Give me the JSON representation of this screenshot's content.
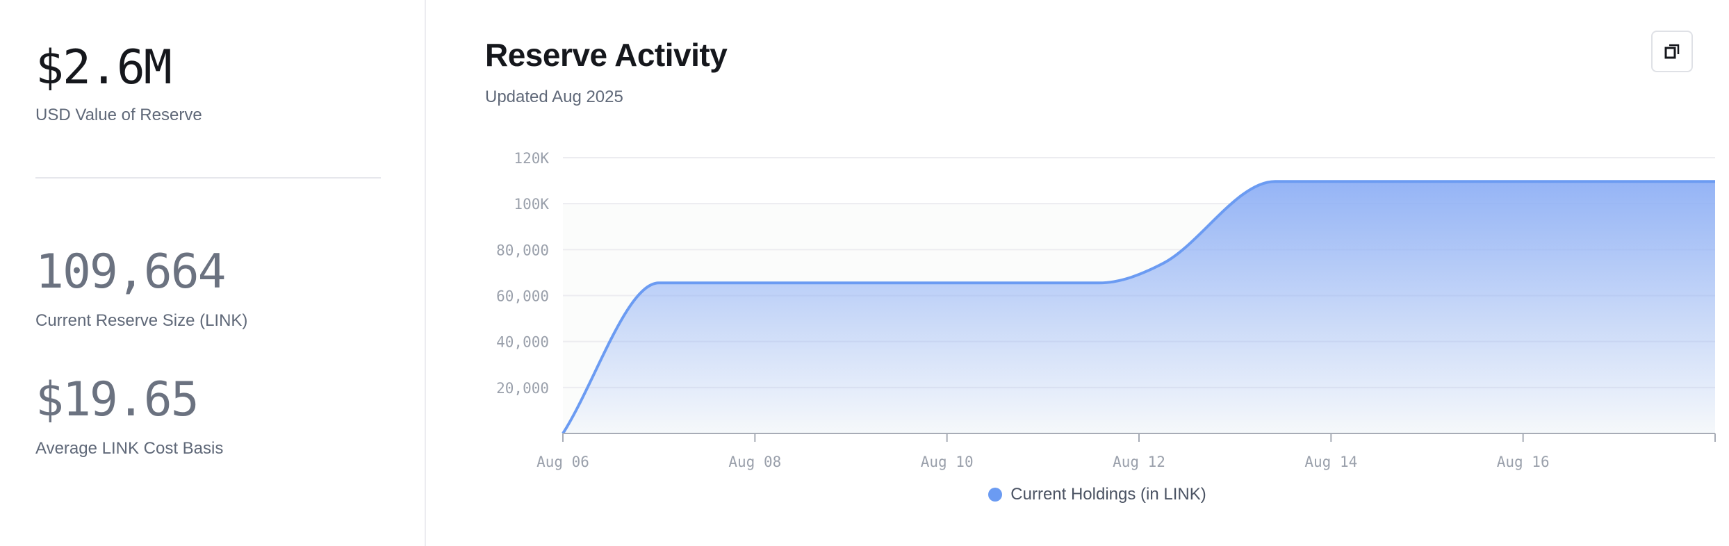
{
  "stats": [
    {
      "value": "$2.6M",
      "label": "USD Value of Reserve",
      "color": "#15171c"
    },
    {
      "value": "109,664",
      "label": "Current Reserve Size (LINK)",
      "color": "#6b7280"
    },
    {
      "value": "$19.65",
      "label": "Average LINK Cost Basis",
      "color": "#6b7280"
    }
  ],
  "header": {
    "title": "Reserve Activity",
    "subtitle": "Updated Aug 2025",
    "expand_icon": "copy-expand-icon"
  },
  "chart_data": {
    "type": "area",
    "title": "Reserve Activity",
    "series": [
      {
        "name": "Current Holdings (in LINK)",
        "color": "#6b9bf2",
        "points": [
          {
            "x": "2025-08-06T00:00",
            "y": 0
          },
          {
            "x": "2025-08-07T00:00",
            "y": 65500
          },
          {
            "x": "2025-08-11T14:00",
            "y": 65500
          },
          {
            "x": "2025-08-12T06:00",
            "y": 74000
          },
          {
            "x": "2025-08-13T10:00",
            "y": 109664
          },
          {
            "x": "2025-08-18T00:00",
            "y": 109664
          }
        ]
      }
    ],
    "xlim": [
      "2025-08-06",
      "2025-08-18"
    ],
    "ylim": [
      0,
      120000
    ],
    "x_ticks": [
      "Aug 06",
      "Aug 08",
      "Aug 10",
      "Aug 12",
      "Aug 14",
      "Aug 16"
    ],
    "y_ticks": [
      {
        "value": 20000,
        "label": "20,000"
      },
      {
        "value": 40000,
        "label": "40,000"
      },
      {
        "value": 60000,
        "label": "60,000"
      },
      {
        "value": 80000,
        "label": "80,000"
      },
      {
        "value": 100000,
        "label": "100K"
      },
      {
        "value": 120000,
        "label": "120K"
      }
    ],
    "grid": true,
    "legend": "bottom-center"
  }
}
